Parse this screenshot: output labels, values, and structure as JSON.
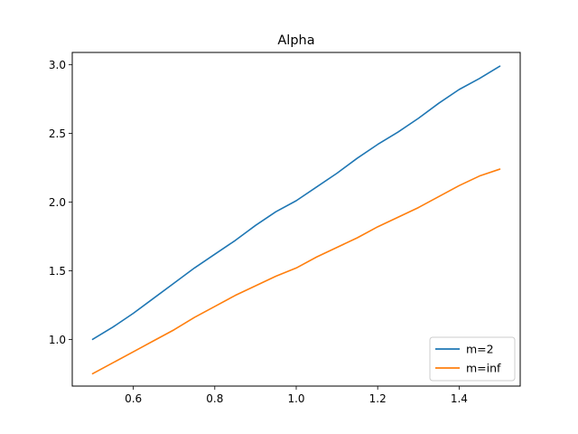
{
  "chart_data": {
    "type": "line",
    "title": "Alpha",
    "xlabel": "",
    "ylabel": "",
    "xlim": [
      0.45,
      1.55
    ],
    "ylim": [
      0.66,
      3.09
    ],
    "x_ticks": [
      0.6,
      0.8,
      1.0,
      1.2,
      1.4
    ],
    "x_tick_labels": [
      "0.6",
      "0.8",
      "1.0",
      "1.2",
      "1.4"
    ],
    "y_ticks": [
      1.0,
      1.5,
      2.0,
      2.5,
      3.0
    ],
    "y_tick_labels": [
      "1.0",
      "1.5",
      "2.0",
      "2.5",
      "3.0"
    ],
    "grid": false,
    "legend_position": "lower-right",
    "x": [
      0.5,
      0.55,
      0.6,
      0.65,
      0.7,
      0.75,
      0.8,
      0.85,
      0.9,
      0.95,
      1.0,
      1.05,
      1.1,
      1.15,
      1.2,
      1.25,
      1.3,
      1.35,
      1.4,
      1.45,
      1.5
    ],
    "series": [
      {
        "name": "m=2",
        "color": "#1f77b4",
        "values": [
          1.0,
          1.09,
          1.19,
          1.3,
          1.41,
          1.52,
          1.62,
          1.72,
          1.83,
          1.93,
          2.01,
          2.11,
          2.21,
          2.32,
          2.42,
          2.51,
          2.61,
          2.72,
          2.82,
          2.9,
          2.99
        ]
      },
      {
        "name": "m=inf",
        "color": "#ff7f0e",
        "values": [
          0.75,
          0.83,
          0.91,
          0.99,
          1.07,
          1.16,
          1.24,
          1.32,
          1.39,
          1.46,
          1.52,
          1.6,
          1.67,
          1.74,
          1.82,
          1.89,
          1.96,
          2.04,
          2.12,
          2.19,
          2.24
        ]
      }
    ]
  }
}
